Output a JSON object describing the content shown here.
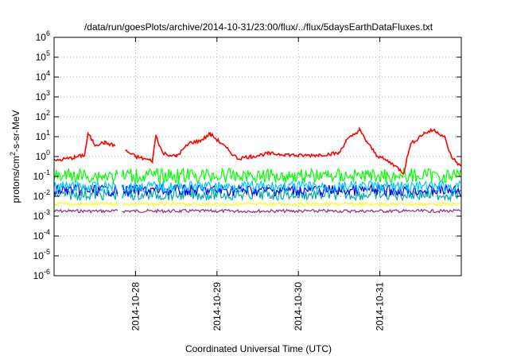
{
  "chart_data": {
    "type": "line",
    "title": "/data/run/goesPlots/archive/2014-10-31/23:00/flux/../flux/5daysEarthDataFluxes.txt",
    "xlabel": "Coordinated Universal Time (UTC)",
    "ylabel": "protons/cm²-s-sr-MeV",
    "yscale": "log",
    "ylim": [
      1e-06,
      1000000.0
    ],
    "y_tick_labels": [
      "10-6",
      "10-5",
      "10-4",
      "10-3",
      "10-2",
      "10-1",
      "100",
      "101",
      "102",
      "103",
      "104",
      "105",
      "106"
    ],
    "y_tick_base": "10",
    "y_tick_exponents": [
      "-6",
      "-5",
      "-4",
      "-3",
      "-2",
      "-1",
      "0",
      "1",
      "2",
      "3",
      "4",
      "5",
      "6"
    ],
    "xlim": [
      "2014-10-27T00:00",
      "2014-11-01T00:00"
    ],
    "x_tick_labels": [
      "2014-10-28",
      "2014-10-29",
      "2014-10-30",
      "2014-10-31"
    ],
    "grid": true,
    "legend": "none",
    "series": [
      {
        "color": "#ff0000",
        "approx_level": 1.0,
        "points": [
          [
            "2014-10-27T00",
            0.6
          ],
          [
            "2014-10-27T06",
            0.9
          ],
          [
            "2014-10-27T09",
            1.2
          ],
          [
            "2014-10-27T10",
            14
          ],
          [
            "2014-10-27T12",
            4
          ],
          [
            "2014-10-27T15",
            5
          ],
          [
            "2014-10-27T18",
            3.5
          ],
          [
            "2014-10-27T19",
            null
          ],
          [
            "2014-10-27T21",
            2
          ],
          [
            "2014-10-28T00",
            1.0
          ],
          [
            "2014-10-28T05",
            0.6
          ],
          [
            "2014-10-28T06",
            12
          ],
          [
            "2014-10-28T08",
            1.5
          ],
          [
            "2014-10-28T12",
            1.0
          ],
          [
            "2014-10-28T16",
            5
          ],
          [
            "2014-10-28T19",
            6
          ],
          [
            "2014-10-28T22",
            14
          ],
          [
            "2014-10-29T01",
            5
          ],
          [
            "2014-10-29T06",
            0.8
          ],
          [
            "2014-10-29T10",
            1.0
          ],
          [
            "2014-10-29T15",
            1.4
          ],
          [
            "2014-10-29T20",
            1.3
          ],
          [
            "2014-10-30T00",
            1.1
          ],
          [
            "2014-10-30T06",
            1.2
          ],
          [
            "2014-10-30T12",
            1.5
          ],
          [
            "2014-10-30T14",
            6
          ],
          [
            "2014-10-30T18",
            22
          ],
          [
            "2014-10-30T20",
            6
          ],
          [
            "2014-10-30T23",
            1.2
          ],
          [
            "2014-10-31T04",
            0.4
          ],
          [
            "2014-10-31T07",
            0.15
          ],
          [
            "2014-10-31T09",
            4
          ],
          [
            "2014-10-31T13",
            15
          ],
          [
            "2014-10-31T16",
            22
          ],
          [
            "2014-10-31T19",
            10
          ],
          [
            "2014-10-31T21",
            1.0
          ],
          [
            "2014-11-01T00",
            0.3
          ]
        ]
      },
      {
        "color": "#00ff00",
        "approx_level": 0.11
      },
      {
        "color": "#00c8ff",
        "approx_level": 0.03
      },
      {
        "color": "#0000ff",
        "approx_level": 0.02
      },
      {
        "color": "#00aaaa",
        "approx_level": 0.012
      },
      {
        "color": "#ffff00",
        "approx_level": 0.004
      },
      {
        "color": "#8b2a8b",
        "approx_level": 0.0018
      }
    ],
    "data_gap": [
      "2014-10-27T19",
      "2014-10-27T20"
    ]
  }
}
